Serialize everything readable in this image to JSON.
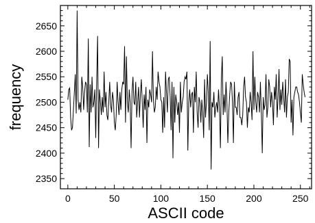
{
  "chart_data": {
    "type": "line",
    "title": "",
    "xlabel": "ASCII code",
    "ylabel": "frequency",
    "xlim": [
      -8,
      262
    ],
    "ylim": [
      2330,
      2690
    ],
    "xticks": [
      0,
      50,
      100,
      150,
      200,
      250
    ],
    "yticks": [
      2350,
      2400,
      2450,
      2500,
      2550,
      2600,
      2650
    ],
    "grid": false,
    "legend": "none",
    "line_color": "#000000",
    "series": [
      {
        "values": [
          2505,
          2525,
          2528,
          2470,
          2445,
          2450,
          2485,
          2520,
          2555,
          2478,
          2680,
          2505,
          2485,
          2500,
          2480,
          2550,
          2530,
          2485,
          2520,
          2540,
          2535,
          2480,
          2625,
          2412,
          2535,
          2480,
          2550,
          2490,
          2500,
          2525,
          2430,
          2540,
          2630,
          2410,
          2525,
          2500,
          2475,
          2510,
          2480,
          2560,
          2490,
          2520,
          2475,
          2465,
          2500,
          2540,
          2495,
          2480,
          2520,
          2505,
          2460,
          2445,
          2475,
          2540,
          2500,
          2475,
          2520,
          2485,
          2525,
          2540,
          2535,
          2610,
          2460,
          2590,
          2500,
          2480,
          2525,
          2500,
          2410,
          2520,
          2550,
          2500,
          2495,
          2540,
          2470,
          2500,
          2530,
          2470,
          2515,
          2545,
          2500,
          2450,
          2515,
          2485,
          2530,
          2420,
          2505,
          2490,
          2525,
          2515,
          2500,
          2600,
          2505,
          2480,
          2490,
          2530,
          2505,
          2560,
          2540,
          2530,
          2505,
          2500,
          2440,
          2510,
          2450,
          2560,
          2520,
          2480,
          2545,
          2550,
          2510,
          2445,
          2540,
          2390,
          2530,
          2460,
          2515,
          2500,
          2475,
          2500,
          2440,
          2540,
          2480,
          2500,
          2510,
          2540,
          2550,
          2545,
          2560,
          2405,
          2500,
          2525,
          2490,
          2515,
          2520,
          2440,
          2530,
          2500,
          2560,
          2480,
          2450,
          2510,
          2500,
          2460,
          2505,
          2480,
          2430,
          2545,
          2470,
          2500,
          2555,
          2520,
          2445,
          2620,
          2368,
          2500,
          2490,
          2520,
          2470,
          2490,
          2500,
          2480,
          2525,
          2490,
          2410,
          2545,
          2590,
          2475,
          2515,
          2480,
          2540,
          2500,
          2420,
          2480,
          2515,
          2540,
          2535,
          2500,
          2420,
          2540,
          2490,
          2490,
          2475,
          2510,
          2520,
          2470,
          2470,
          2455,
          2475,
          2530,
          2550,
          2510,
          2500,
          2450,
          2490,
          2480,
          2520,
          2500,
          2465,
          2600,
          2485,
          2550,
          2500,
          2480,
          2520,
          2510,
          2480,
          2540,
          2480,
          2400,
          2510,
          2485,
          2495,
          2555,
          2470,
          2490,
          2545,
          2530,
          2490,
          2520,
          2500,
          2455,
          2530,
          2505,
          2555,
          2470,
          2510,
          2565,
          2485,
          2525,
          2495,
          2540,
          2510,
          2480,
          2545,
          2470,
          2510,
          2520,
          2585,
          2580,
          2460,
          2505,
          2435,
          2510,
          2520,
          2530,
          2530,
          2520,
          2515,
          2500,
          2480,
          2460,
          2555,
          2535,
          2520,
          2510
        ]
      }
    ]
  }
}
